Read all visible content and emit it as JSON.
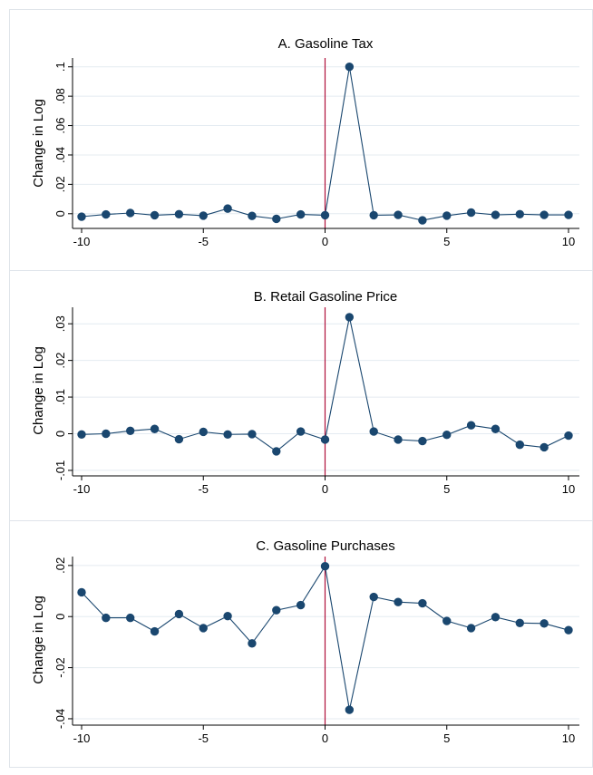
{
  "colors": {
    "series": "#1a476f",
    "reference_line": "#b0103a",
    "grid": "#e4ebf1",
    "panel_border": "#dfe4ea",
    "background": "#ffffff"
  },
  "chart_data": [
    {
      "type": "line",
      "title": "A. Gasoline Tax",
      "ylabel": "Change in Log",
      "xlabel": "",
      "x": [
        -10,
        -9,
        -8,
        -7,
        -6,
        -5,
        -4,
        -3,
        -2,
        -1,
        0,
        1,
        2,
        3,
        4,
        5,
        6,
        7,
        8,
        9,
        10
      ],
      "series": [
        {
          "values": [
            -0.002,
            -0.0005,
            0.0005,
            -0.001,
            -0.0003,
            -0.0013,
            0.0035,
            -0.0015,
            -0.0035,
            -0.0005,
            -0.001,
            0.1,
            -0.001,
            -0.0008,
            -0.0045,
            -0.0013,
            0.0008,
            -0.0008,
            -0.0003,
            -0.0008,
            -0.0008
          ]
        }
      ],
      "xlim": [
        -10,
        10
      ],
      "ylim": [
        -0.01,
        0.106
      ],
      "xticks": [
        -10,
        -5,
        0,
        5,
        10
      ],
      "xtick_labels": [
        "-10",
        "-5",
        "0",
        "5",
        "10"
      ],
      "yticks": [
        0,
        0.02,
        0.04,
        0.06,
        0.08,
        0.1
      ],
      "ytick_labels": [
        "0",
        ".02",
        ".04",
        ".06",
        ".08",
        ".1"
      ],
      "reference_line_x": 0,
      "grid": true
    },
    {
      "type": "line",
      "title": "B. Retail Gasoline Price",
      "ylabel": "Change in Log",
      "xlabel": "",
      "x": [
        -10,
        -9,
        -8,
        -7,
        -6,
        -5,
        -4,
        -3,
        -2,
        -1,
        0,
        1,
        2,
        3,
        4,
        5,
        6,
        7,
        8,
        9,
        10
      ],
      "series": [
        {
          "values": [
            -0.0002,
            0.0,
            0.0008,
            0.0013,
            -0.0015,
            0.0005,
            -0.0002,
            -0.0001,
            -0.0048,
            0.0006,
            -0.0016,
            0.0318,
            0.0006,
            -0.0016,
            -0.002,
            -0.0003,
            0.0023,
            0.0013,
            -0.003,
            -0.0037,
            -0.0005
          ]
        }
      ],
      "xlim": [
        -10,
        10
      ],
      "ylim": [
        -0.0115,
        0.0345
      ],
      "xticks": [
        -10,
        -5,
        0,
        5,
        10
      ],
      "xtick_labels": [
        "-10",
        "-5",
        "0",
        "5",
        "10"
      ],
      "yticks": [
        -0.01,
        0,
        0.01,
        0.02,
        0.03
      ],
      "ytick_labels": [
        "-.01",
        "0",
        ".01",
        ".02",
        ".03"
      ],
      "reference_line_x": 0,
      "grid": true
    },
    {
      "type": "line",
      "title": "C. Gasoline Purchases",
      "ylabel": "Change in Log",
      "xlabel": "",
      "x": [
        -10,
        -9,
        -8,
        -7,
        -6,
        -5,
        -4,
        -3,
        -2,
        -1,
        0,
        1,
        2,
        3,
        4,
        5,
        6,
        7,
        8,
        9,
        10
      ],
      "series": [
        {
          "values": [
            0.0095,
            -0.0005,
            -0.0005,
            -0.0058,
            0.001,
            -0.0045,
            0.0002,
            -0.0105,
            0.0025,
            0.0045,
            0.0197,
            -0.0365,
            0.0077,
            0.0057,
            0.0052,
            -0.0017,
            -0.0045,
            -0.0002,
            -0.0025,
            -0.0027,
            -0.0053
          ]
        }
      ],
      "xlim": [
        -10,
        10
      ],
      "ylim": [
        -0.0425,
        0.0235
      ],
      "xticks": [
        -10,
        -5,
        0,
        5,
        10
      ],
      "xtick_labels": [
        "-10",
        "-5",
        "0",
        "5",
        "10"
      ],
      "yticks": [
        -0.04,
        -0.02,
        0,
        0.02
      ],
      "ytick_labels": [
        "-.04",
        "-.02",
        "0",
        ".02"
      ],
      "reference_line_x": 0,
      "grid": true
    }
  ]
}
